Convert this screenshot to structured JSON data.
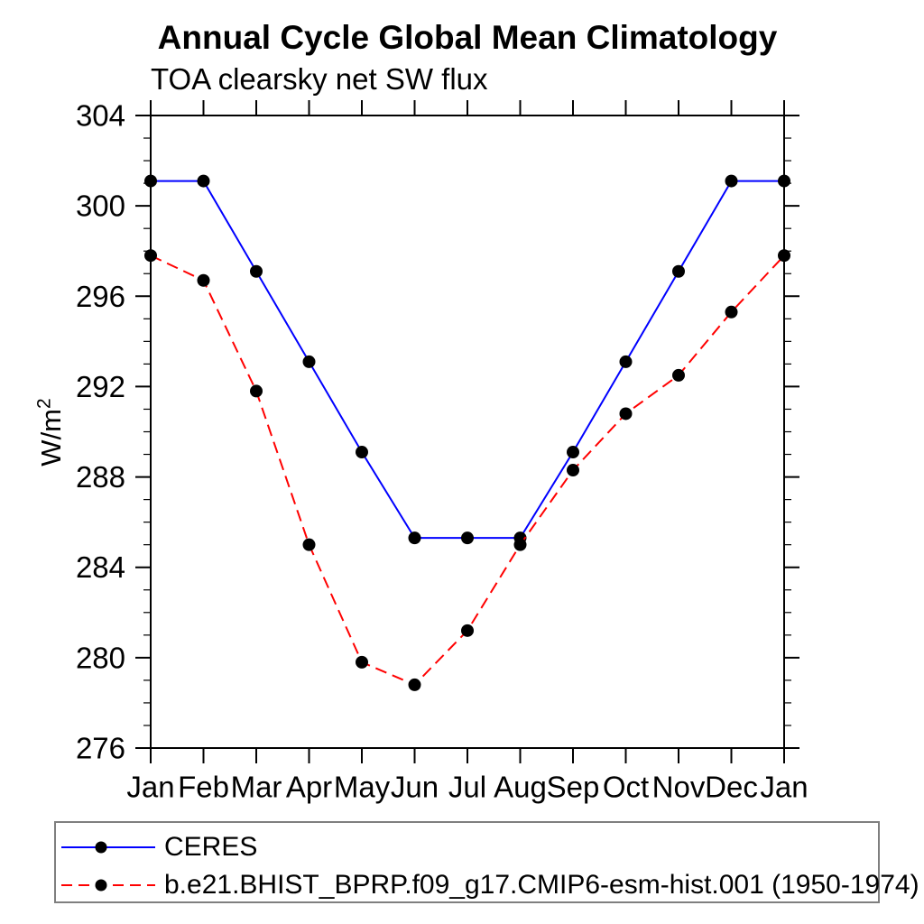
{
  "chart": {
    "title": "Annual Cycle Global Mean Climatology",
    "subtitle": "TOA clearsky net SW flux",
    "ylabel_base": "W/m",
    "ylabel_exponent": "2"
  },
  "chart_data": {
    "type": "line",
    "title": "Annual Cycle Global Mean Climatology",
    "subtitle": "TOA clearsky net SW flux",
    "ylabel": "W/m²",
    "xlabel": "",
    "x_categories": [
      "Jan",
      "Feb",
      "Mar",
      "Apr",
      "May",
      "Jun",
      "Jul",
      "Aug",
      "Sep",
      "Oct",
      "Nov",
      "Dec",
      "Jan"
    ],
    "ylim": [
      276,
      304
    ],
    "yticks_major": [
      276,
      280,
      284,
      288,
      292,
      296,
      300,
      304
    ],
    "ytick_minor_step": 1,
    "grid": false,
    "legend_position": "bottom",
    "marker_color": "#000000",
    "series": [
      {
        "name": "CERES",
        "color": "#0000ff",
        "style": "solid",
        "marker": "circle",
        "values": [
          301.1,
          301.1,
          297.1,
          293.1,
          289.1,
          285.3,
          285.3,
          285.3,
          289.1,
          293.1,
          297.1,
          301.1,
          301.1
        ]
      },
      {
        "name": "b.e21.BHIST_BPRP.f09_g17.CMIP6-esm-hist.001 (1950-1974)",
        "color": "#ff0000",
        "style": "dashed",
        "marker": "circle",
        "values": [
          297.8,
          296.7,
          291.8,
          285.0,
          279.8,
          278.8,
          281.2,
          285.0,
          288.3,
          290.8,
          292.5,
          295.3,
          297.8
        ]
      }
    ]
  }
}
